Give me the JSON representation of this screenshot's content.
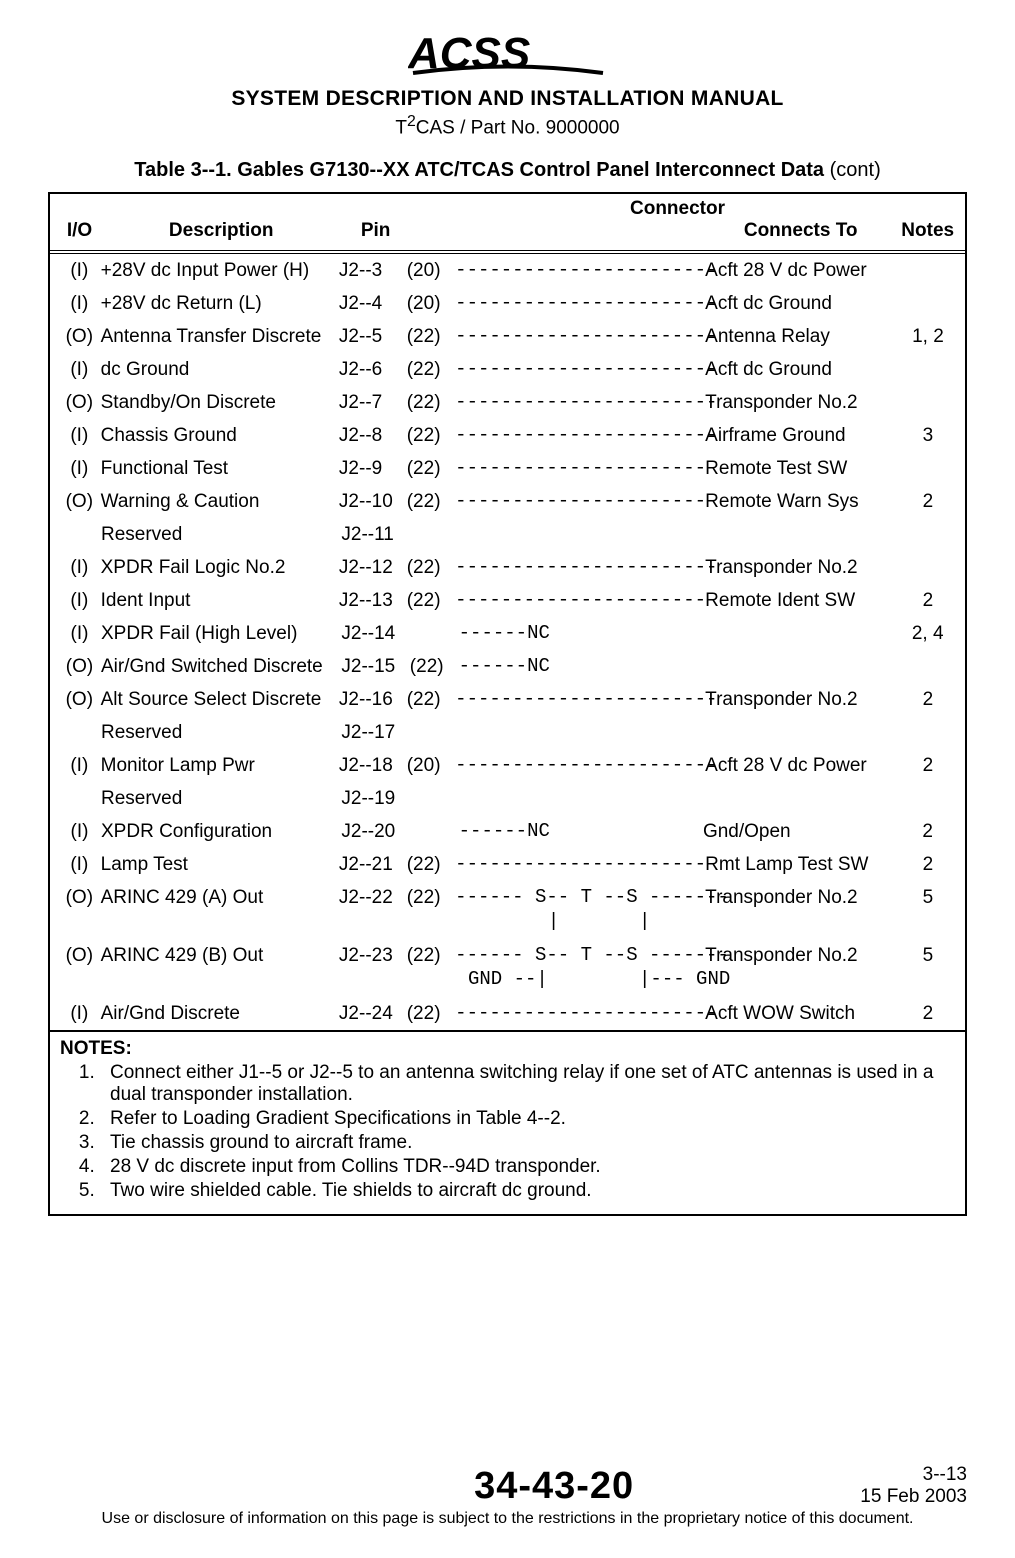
{
  "header": {
    "logo_text": "ACSS",
    "manual_title": "SYSTEM DESCRIPTION AND INSTALLATION MANUAL",
    "part_line_prefix": "T",
    "part_line_super": "2",
    "part_line_rest": "CAS / Part No. 9000000"
  },
  "table": {
    "title": "Table 3--1.  Gables G7130--XX ATC/TCAS Control Panel Interconnect Data",
    "title_suffix": " (cont)",
    "head": {
      "io": "I/O",
      "description": "Description",
      "connector": "Connector",
      "pin": "Pin",
      "connects_to": "Connects To",
      "notes": "Notes"
    },
    "rows": [
      {
        "io": "(I)",
        "desc": "+28V dc Input Power (H)",
        "pin": "J2--3",
        "awg": "(20)",
        "mid": "-----------------------",
        "conn": "Acft 28 V dc Power",
        "notes": ""
      },
      {
        "io": "(I)",
        "desc": "+28V dc Return (L)",
        "pin": "J2--4",
        "awg": "(20)",
        "mid": "-----------------------",
        "conn": "Acft dc Ground",
        "notes": ""
      },
      {
        "io": "(O)",
        "desc": "Antenna Transfer Discrete",
        "pin": "J2--5",
        "awg": "(22)",
        "mid": "-----------------------",
        "conn": "Antenna Relay",
        "notes": "1, 2"
      },
      {
        "io": "(I)",
        "desc": "dc Ground",
        "pin": "J2--6",
        "awg": "(22)",
        "mid": "-----------------------",
        "conn": "Acft dc Ground",
        "notes": ""
      },
      {
        "io": "(O)",
        "desc": "Standby/On Discrete",
        "pin": "J2--7",
        "awg": "(22)",
        "mid": "-----------------------",
        "conn": "Transponder No.2",
        "notes": ""
      },
      {
        "io": "(I)",
        "desc": "Chassis Ground",
        "pin": "J2--8",
        "awg": "(22)",
        "mid": "-----------------------",
        "conn": "Airframe Ground",
        "notes": "3"
      },
      {
        "io": "(I)",
        "desc": "Functional Test",
        "pin": "J2--9",
        "awg": "(22)",
        "mid": "-----------------------",
        "conn": "Remote Test SW",
        "notes": ""
      },
      {
        "io": "(O)",
        "desc": "Warning & Caution",
        "pin": "J2--10",
        "awg": "(22)",
        "mid": "-----------------------",
        "conn": "Remote Warn Sys",
        "notes": "2"
      },
      {
        "io": "",
        "desc": "Reserved",
        "pin": "J2--11",
        "awg": "",
        "mid": "",
        "conn": "",
        "notes": ""
      },
      {
        "io": "(I)",
        "desc": "XPDR Fail Logic No.2",
        "pin": "J2--12",
        "awg": "(22)",
        "mid": "-----------------------",
        "conn": "Transponder No.2",
        "notes": ""
      },
      {
        "io": "(I)",
        "desc": "Ident Input",
        "pin": "J2--13",
        "awg": "(22)",
        "mid": "-----------------------",
        "conn": "Remote Ident SW",
        "notes": "2"
      },
      {
        "io": "(I)",
        "desc": "XPDR Fail (High Level)",
        "pin": "J2--14",
        "awg": "",
        "mid": "------NC",
        "conn": "",
        "notes": "2, 4"
      },
      {
        "io": "(O)",
        "desc": "Air/Gnd Switched Discrete",
        "pin": "J2--15",
        "awg": "(22)",
        "mid": "------NC",
        "conn": "",
        "notes": ""
      },
      {
        "io": "(O)",
        "desc": "Alt Source Select Discrete",
        "pin": "J2--16",
        "awg": "(22)",
        "mid": "-----------------------",
        "conn": "Transponder No.2",
        "notes": "2"
      },
      {
        "io": "",
        "desc": "Reserved",
        "pin": "J2--17",
        "awg": "",
        "mid": "",
        "conn": "",
        "notes": ""
      },
      {
        "io": "(I)",
        "desc": "Monitor Lamp Pwr",
        "pin": "J2--18",
        "awg": "(20)",
        "mid": "-----------------------",
        "conn": "Acft 28 V dc Power",
        "notes": "2"
      },
      {
        "io": "",
        "desc": "Reserved",
        "pin": "J2--19",
        "awg": "",
        "mid": "",
        "conn": "",
        "notes": ""
      },
      {
        "io": "(I)",
        "desc": "XPDR Configuration",
        "pin": "J2--20",
        "awg": "",
        "mid": "------NC",
        "conn": "Gnd/Open",
        "notes": "2"
      },
      {
        "io": "(I)",
        "desc": "Lamp Test",
        "pin": "J2--21",
        "awg": "(22)",
        "mid": "-----------------------",
        "conn": "Rmt Lamp Test SW",
        "notes": "2"
      },
      {
        "io": "(O)",
        "desc": "ARINC 429 (A) Out",
        "pin": "J2--22",
        "awg": "(22)",
        "mid": "------ S-- T --S -------",
        "conn": "Transponder No.2",
        "notes": "5",
        "sub": "       |       |"
      },
      {
        "io": "(O)",
        "desc": "ARINC 429 (B) Out",
        "pin": "J2--23",
        "awg": "(22)",
        "mid": "------ S-- T --S -------",
        "conn": "Transponder No.2",
        "notes": "5",
        "sub": "GND --|        |--- GND"
      },
      {
        "io": "(I)",
        "desc": "Air/Gnd Discrete",
        "pin": "J2--24",
        "awg": "(22)",
        "mid": "-----------------------",
        "conn": "Acft WOW Switch",
        "notes": "2"
      }
    ],
    "notes_title": "NOTES:",
    "notes": [
      "Connect either J1--5 or J2--5 to an antenna switching relay if one set of ATC antennas is used in a dual transponder installation.",
      "Refer to Loading Gradient Specifications in Table 4--2.",
      "Tie chassis ground to aircraft frame.",
      "28 V dc discrete input from Collins TDR--94D transponder.",
      "Two wire shielded cable.  Tie shields to aircraft dc ground."
    ]
  },
  "footer": {
    "section": "34-43-20",
    "page": "3--13",
    "date": "15 Feb 2003",
    "disclaimer": "Use or disclosure of information on this page is subject to the restrictions in the proprietary notice of this document."
  }
}
